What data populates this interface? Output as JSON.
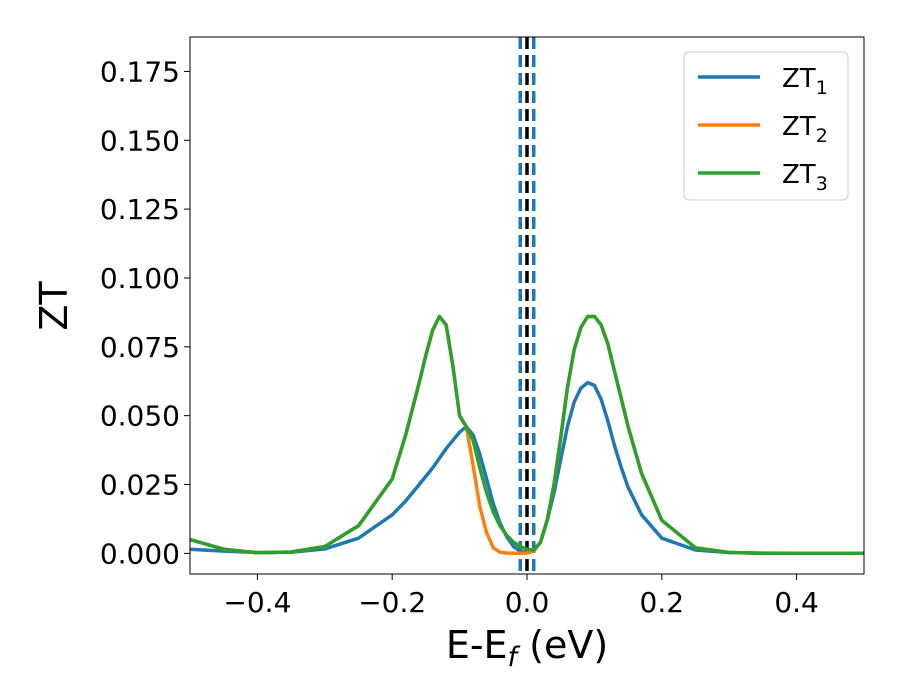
{
  "chart_data": {
    "type": "line",
    "title": "",
    "xlabel": {
      "main": "E-E",
      "sub": "f",
      "unit": " (eV)"
    },
    "ylabel": "ZT",
    "xlim": [
      -0.5,
      0.5
    ],
    "ylim": [
      -0.0075,
      0.1875
    ],
    "xticks": [
      -0.4,
      -0.2,
      0.0,
      0.2,
      0.4
    ],
    "xtick_labels": [
      "−0.4",
      "−0.2",
      "0.0",
      "0.2",
      "0.4"
    ],
    "yticks": [
      0.0,
      0.025,
      0.05,
      0.075,
      0.1,
      0.125,
      0.15,
      0.175
    ],
    "ytick_labels": [
      "0.000",
      "0.025",
      "0.050",
      "0.075",
      "0.100",
      "0.125",
      "0.150",
      "0.175"
    ],
    "grid": false,
    "legend_position": "top-right",
    "vlines": [
      {
        "x": -0.01,
        "style": "dashed",
        "color": "#1f77b4"
      },
      {
        "x": 0.01,
        "style": "dashed",
        "color": "#1f77b4"
      },
      {
        "x": 0.0,
        "style": "dashed",
        "color": "#000000"
      }
    ],
    "series": [
      {
        "name": {
          "main": "ZT",
          "sub": "1"
        },
        "color": "#1f77b4",
        "x": [
          -0.5,
          -0.45,
          -0.4,
          -0.35,
          -0.3,
          -0.25,
          -0.2,
          -0.18,
          -0.16,
          -0.14,
          -0.12,
          -0.1,
          -0.09,
          -0.08,
          -0.07,
          -0.06,
          -0.05,
          -0.04,
          -0.03,
          -0.02,
          -0.01,
          0.0,
          0.01,
          0.02,
          0.03,
          0.04,
          0.05,
          0.06,
          0.07,
          0.08,
          0.09,
          0.1,
          0.11,
          0.12,
          0.13,
          0.14,
          0.15,
          0.17,
          0.2,
          0.25,
          0.3,
          0.35,
          0.4,
          0.45,
          0.5
        ],
        "y": [
          0.0015,
          0.0008,
          0.0003,
          0.0004,
          0.0016,
          0.0055,
          0.014,
          0.019,
          0.025,
          0.031,
          0.038,
          0.044,
          0.046,
          0.043,
          0.036,
          0.027,
          0.018,
          0.011,
          0.006,
          0.0025,
          0.0008,
          0.0003,
          0.0008,
          0.004,
          0.012,
          0.022,
          0.034,
          0.046,
          0.055,
          0.06,
          0.062,
          0.061,
          0.056,
          0.048,
          0.039,
          0.031,
          0.024,
          0.014,
          0.0055,
          0.0012,
          0.0003,
          0.0001,
          0.0,
          0.0,
          0.0
        ]
      },
      {
        "name": {
          "main": "ZT",
          "sub": "2"
        },
        "color": "#ff7f0e",
        "x": [
          -0.5,
          -0.45,
          -0.4,
          -0.35,
          -0.3,
          -0.25,
          -0.2,
          -0.18,
          -0.16,
          -0.15,
          -0.14,
          -0.13,
          -0.12,
          -0.11,
          -0.1,
          -0.09,
          -0.08,
          -0.07,
          -0.06,
          -0.05,
          -0.04,
          -0.03,
          -0.02,
          -0.01,
          0.0,
          0.01,
          0.02,
          0.03,
          0.04,
          0.05,
          0.06,
          0.07,
          0.08,
          0.09,
          0.1,
          0.11,
          0.12,
          0.13,
          0.14,
          0.15,
          0.17,
          0.2,
          0.25,
          0.3,
          0.35,
          0.4,
          0.45,
          0.5
        ],
        "y": [
          0.005,
          0.0015,
          0.0002,
          0.0005,
          0.0025,
          0.01,
          0.027,
          0.043,
          0.062,
          0.072,
          0.081,
          0.086,
          0.083,
          0.068,
          0.05,
          0.046,
          0.032,
          0.017,
          0.0075,
          0.002,
          0.0004,
          0.0001,
          0.0,
          0.0,
          0.0001,
          0.0008,
          0.004,
          0.012,
          0.025,
          0.042,
          0.06,
          0.074,
          0.082,
          0.086,
          0.086,
          0.083,
          0.076,
          0.066,
          0.056,
          0.046,
          0.029,
          0.012,
          0.002,
          0.0003,
          0.0,
          0.0,
          0.0,
          0.0
        ]
      },
      {
        "name": {
          "main": "ZT",
          "sub": "3"
        },
        "color": "#2ca02c",
        "x": [
          -0.5,
          -0.45,
          -0.4,
          -0.35,
          -0.3,
          -0.25,
          -0.2,
          -0.18,
          -0.16,
          -0.15,
          -0.14,
          -0.13,
          -0.12,
          -0.11,
          -0.1,
          -0.09,
          -0.08,
          -0.07,
          -0.06,
          -0.05,
          -0.04,
          -0.03,
          -0.02,
          -0.01,
          0.0,
          0.01,
          0.02,
          0.03,
          0.04,
          0.05,
          0.06,
          0.07,
          0.08,
          0.09,
          0.1,
          0.11,
          0.12,
          0.13,
          0.14,
          0.15,
          0.17,
          0.2,
          0.25,
          0.3,
          0.35,
          0.4,
          0.45,
          0.5
        ],
        "y": [
          0.005,
          0.0015,
          0.0002,
          0.0005,
          0.0025,
          0.01,
          0.027,
          0.043,
          0.062,
          0.072,
          0.081,
          0.086,
          0.083,
          0.068,
          0.05,
          0.046,
          0.041,
          0.031,
          0.022,
          0.015,
          0.01,
          0.0065,
          0.004,
          0.0025,
          0.0015,
          0.0012,
          0.004,
          0.012,
          0.025,
          0.042,
          0.06,
          0.074,
          0.082,
          0.086,
          0.086,
          0.083,
          0.076,
          0.066,
          0.056,
          0.046,
          0.029,
          0.012,
          0.002,
          0.0003,
          0.0,
          0.0,
          0.0,
          0.0
        ]
      }
    ]
  }
}
